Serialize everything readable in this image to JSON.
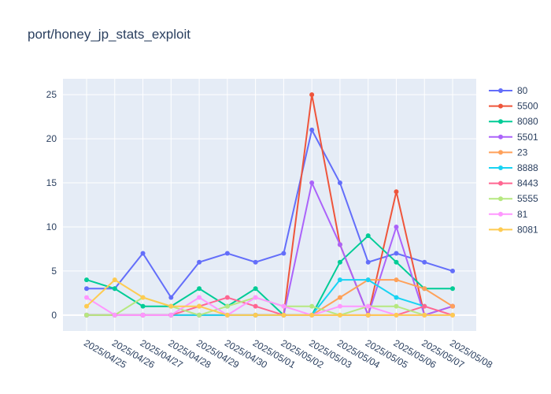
{
  "chart_data": {
    "type": "line",
    "title": "port/honey_jp_stats_exploit",
    "xlabel": "",
    "ylabel": "",
    "ylim": [
      -1.8,
      26.8
    ],
    "yticks": [
      0,
      5,
      10,
      15,
      20,
      25
    ],
    "grid": true,
    "legend_position": "right",
    "x": [
      "2025/04/25",
      "2025/04/26",
      "2025/04/27",
      "2025/04/28",
      "2025/04/29",
      "2025/04/30",
      "2025/05/01",
      "2025/05/02",
      "2025/05/03",
      "2025/05/04",
      "2025/05/05",
      "2025/05/06",
      "2025/05/07",
      "2025/05/08"
    ],
    "series": [
      {
        "name": "80",
        "color": "#636efa",
        "values": [
          3,
          3,
          7,
          2,
          6,
          7,
          6,
          7,
          21,
          15,
          6,
          7,
          6,
          5
        ]
      },
      {
        "name": "5500",
        "color": "#EF553B",
        "values": [
          0,
          0,
          0,
          0,
          0,
          0,
          0,
          0,
          25,
          8,
          0,
          14,
          0,
          1
        ]
      },
      {
        "name": "8080",
        "color": "#00cc96",
        "values": [
          4,
          3,
          1,
          1,
          3,
          1,
          3,
          0,
          0,
          6,
          9,
          6,
          3,
          3
        ]
      },
      {
        "name": "5501",
        "color": "#ab63fa",
        "values": [
          0,
          0,
          0,
          0,
          0,
          0,
          0,
          0,
          15,
          8,
          0,
          10,
          0,
          1
        ]
      },
      {
        "name": "23",
        "color": "#FFA15A",
        "values": [
          0,
          0,
          0,
          0,
          0,
          0,
          0,
          0,
          0,
          2,
          4,
          4,
          3,
          1
        ]
      },
      {
        "name": "8888",
        "color": "#19d3f3",
        "values": [
          0,
          0,
          0,
          0,
          0,
          0,
          0,
          0,
          0,
          4,
          4,
          2,
          1,
          null
        ]
      },
      {
        "name": "8443",
        "color": "#FF6692",
        "values": [
          0,
          0,
          0,
          0,
          1,
          2,
          1,
          0,
          0,
          0,
          0,
          0,
          1,
          0
        ]
      },
      {
        "name": "5555",
        "color": "#B6E880",
        "values": [
          0,
          0,
          2,
          1,
          0,
          1,
          2,
          1,
          1,
          0,
          1,
          1,
          0,
          0
        ]
      },
      {
        "name": "81",
        "color": "#FF97FF",
        "values": [
          2,
          0,
          0,
          0,
          2,
          0,
          2,
          1,
          0,
          1,
          1,
          0,
          0,
          0
        ]
      },
      {
        "name": "8081",
        "color": "#FECB52",
        "values": [
          1,
          4,
          2,
          1,
          1,
          0,
          0,
          0,
          0,
          0,
          0,
          0,
          0,
          0
        ]
      }
    ]
  }
}
